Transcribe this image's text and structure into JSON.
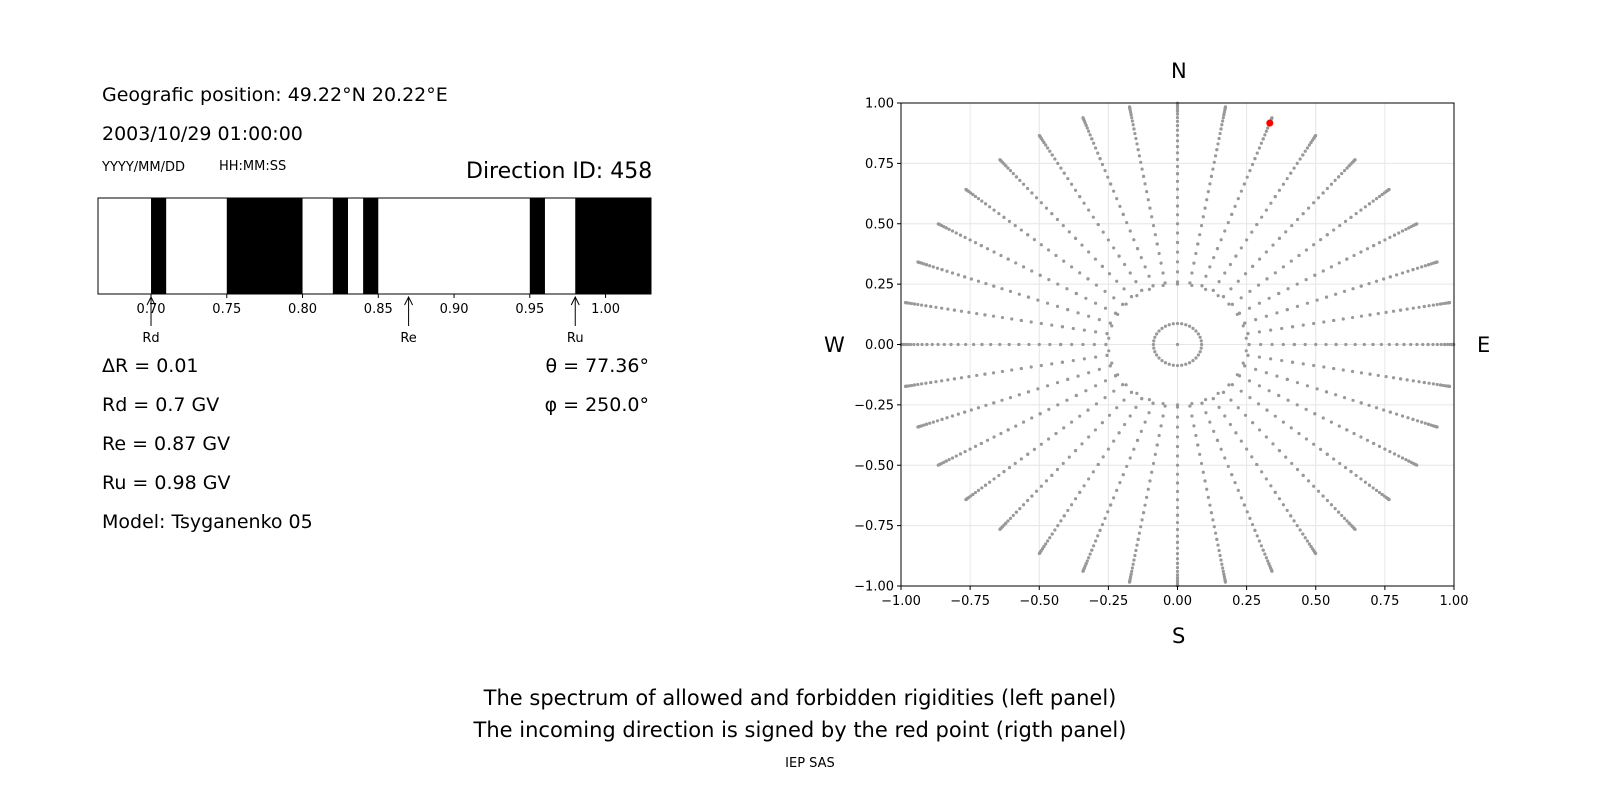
{
  "info": {
    "position": "Geografic position: 49.22°N 20.22°E",
    "datetime": "2003/10/29 01:00:00",
    "date_format": "YYYY/MM/DD",
    "time_format": "HH:MM:SS",
    "direction_id": "Direction ID: 458",
    "delta_r": "ΔR = 0.01",
    "rd": "Rd = 0.7 GV",
    "re": "Re = 0.87 GV",
    "ru": "Ru = 0.98 GV",
    "model": "Model: Tsyganenko 05",
    "theta": "θ = 77.36°",
    "phi": "φ = 250.0°"
  },
  "compass": {
    "n": "N",
    "s": "S",
    "w": "W",
    "e": "E"
  },
  "captions": {
    "line1": "The spectrum of allowed and forbidden rigidities (left panel)",
    "line2": "The incoming direction is signed by the red point (rigth panel)",
    "credit": "IEP SAS"
  },
  "chart_data": [
    {
      "type": "bar",
      "title": "",
      "xlim": [
        0.665,
        1.03
      ],
      "xticks": [
        0.7,
        0.75,
        0.8,
        0.85,
        0.9,
        0.95,
        1.0
      ],
      "xtick_labels": [
        "0.70",
        "0.75",
        "0.80",
        "0.85",
        "0.90",
        "0.95",
        "1.00"
      ],
      "forbidden_bands": [
        [
          0.7,
          0.71
        ],
        [
          0.75,
          0.8
        ],
        [
          0.82,
          0.83
        ],
        [
          0.84,
          0.85
        ],
        [
          0.95,
          0.96
        ],
        [
          0.98,
          1.03
        ]
      ],
      "annotations": [
        {
          "label": "Rd",
          "x": 0.7
        },
        {
          "label": "Re",
          "x": 0.87
        },
        {
          "label": "Ru",
          "x": 0.98
        }
      ],
      "colors": {
        "forbidden": "#000000",
        "allowed": "#ffffff"
      }
    },
    {
      "type": "scatter",
      "title": "",
      "xlim": [
        -1.0,
        1.0
      ],
      "ylim": [
        -1.0,
        1.0
      ],
      "grid": true,
      "xticks": [
        -1.0,
        -0.75,
        -0.5,
        -0.25,
        0.0,
        0.25,
        0.5,
        0.75,
        1.0
      ],
      "xtick_labels": [
        "−1.00",
        "−0.75",
        "−0.50",
        "−0.25",
        "0.00",
        "0.25",
        "0.50",
        "0.75",
        "1.00"
      ],
      "yticks": [
        -1.0,
        -0.75,
        -0.5,
        -0.25,
        0.0,
        0.25,
        0.5,
        0.75,
        1.0
      ],
      "ytick_labels": [
        "−1.00",
        "−0.75",
        "−0.50",
        "−0.25",
        "0.00",
        "0.25",
        "0.50",
        "0.75",
        "1.00"
      ],
      "grid_theta_deg": [
        5,
        15,
        25,
        35,
        45,
        55,
        65,
        75,
        85
      ],
      "grid_phi_step_deg": 10,
      "ring_points": 30,
      "highlight": {
        "theta_deg": 77.36,
        "phi_deg": 250.0,
        "x": 0.3338,
        "y": 0.917
      },
      "colors": {
        "grid_points": "#999999",
        "highlight": "#ff0000"
      }
    }
  ]
}
